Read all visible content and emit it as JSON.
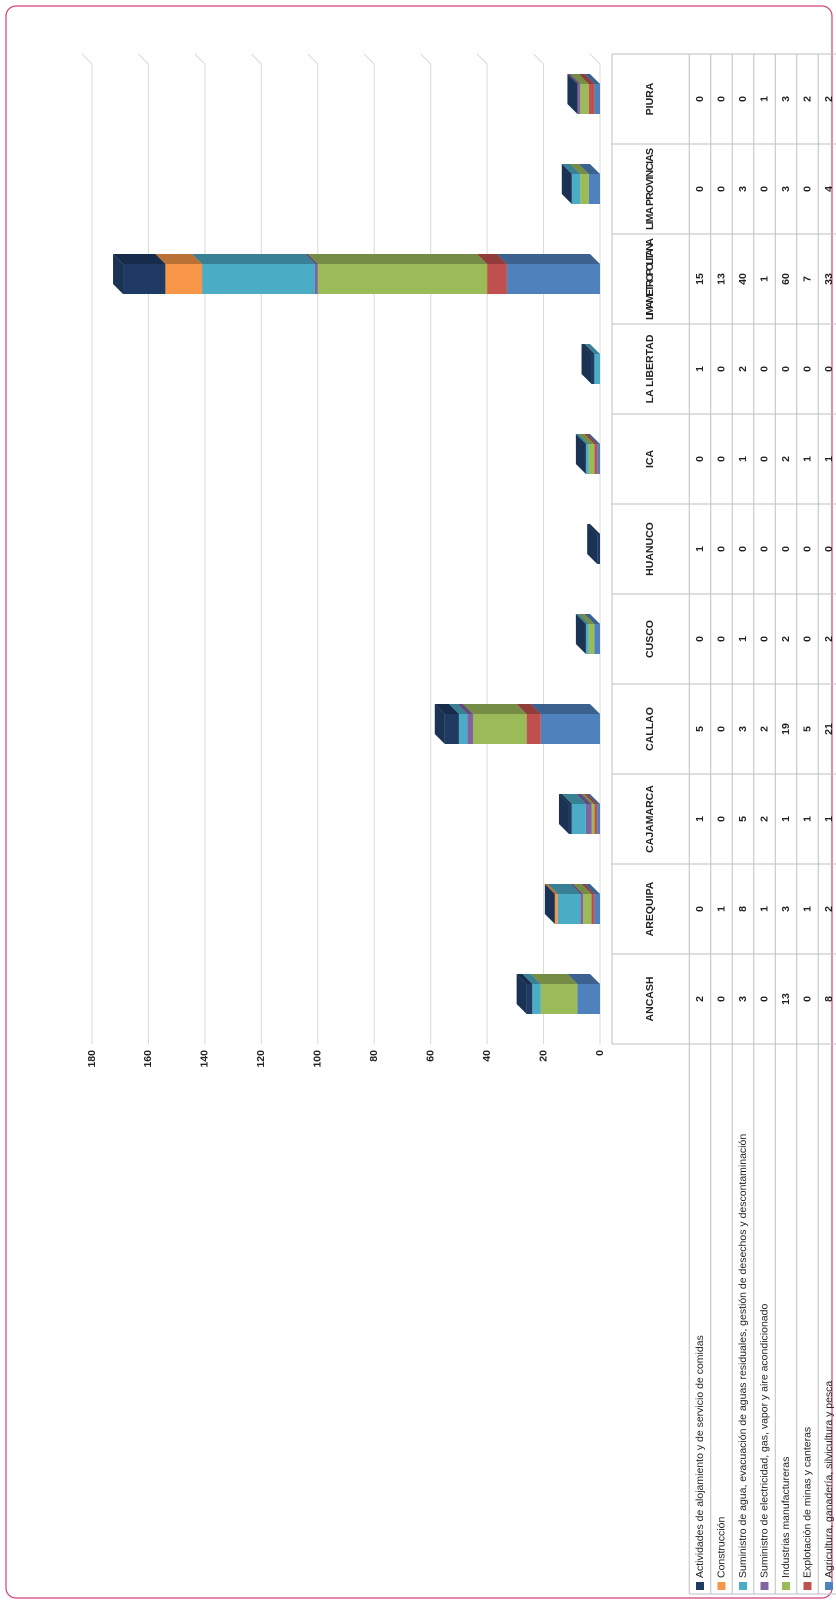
{
  "chart_data": {
    "type": "bar",
    "stacked": true,
    "data_table": true,
    "categories": [
      "ANCASH",
      "AREQUIPA",
      "CAJAMARCA",
      "CALLAO",
      "CUSCO",
      "HUANUCO",
      "ICA",
      "LA LIBERTAD",
      "LIMA METROPOLITANA",
      "LIMA PROVINCIAS",
      "PIURA"
    ],
    "series": [
      {
        "name": "Actividades de alojamiento y de servicio de comidas",
        "color": "#1f3b63",
        "values": [
          2,
          0,
          1,
          5,
          0,
          1,
          0,
          1,
          15,
          0,
          0
        ]
      },
      {
        "name": "Construcción",
        "color": "#f79646",
        "values": [
          0,
          1,
          0,
          0,
          0,
          0,
          0,
          0,
          13,
          0,
          0
        ]
      },
      {
        "name": "Suministro de agua, evacuación de aguas residuales, gestión de desechos y descontaminación",
        "color": "#4bacc6",
        "values": [
          3,
          8,
          5,
          3,
          1,
          0,
          1,
          2,
          40,
          3,
          0
        ]
      },
      {
        "name": "Suministro de electricidad, gas, vapor y aire acondicionado",
        "color": "#8064a2",
        "values": [
          0,
          1,
          2,
          2,
          0,
          0,
          0,
          0,
          1,
          0,
          1
        ]
      },
      {
        "name": "Industrias manufactureras",
        "color": "#9bbb59",
        "values": [
          13,
          3,
          1,
          19,
          2,
          0,
          2,
          0,
          60,
          3,
          3
        ]
      },
      {
        "name": "Explotación de minas y canteras",
        "color": "#c0504d",
        "values": [
          0,
          1,
          1,
          5,
          0,
          0,
          1,
          0,
          7,
          0,
          2
        ]
      },
      {
        "name": "Agricultura, ganadería, silvicultura y pesca",
        "color": "#4f81bd",
        "values": [
          8,
          2,
          1,
          21,
          2,
          0,
          1,
          0,
          33,
          4,
          2
        ]
      }
    ],
    "ylim": [
      0,
      180
    ],
    "yticks": [
      0,
      20,
      40,
      60,
      80,
      100,
      120,
      140,
      160,
      180
    ],
    "grid": true
  }
}
